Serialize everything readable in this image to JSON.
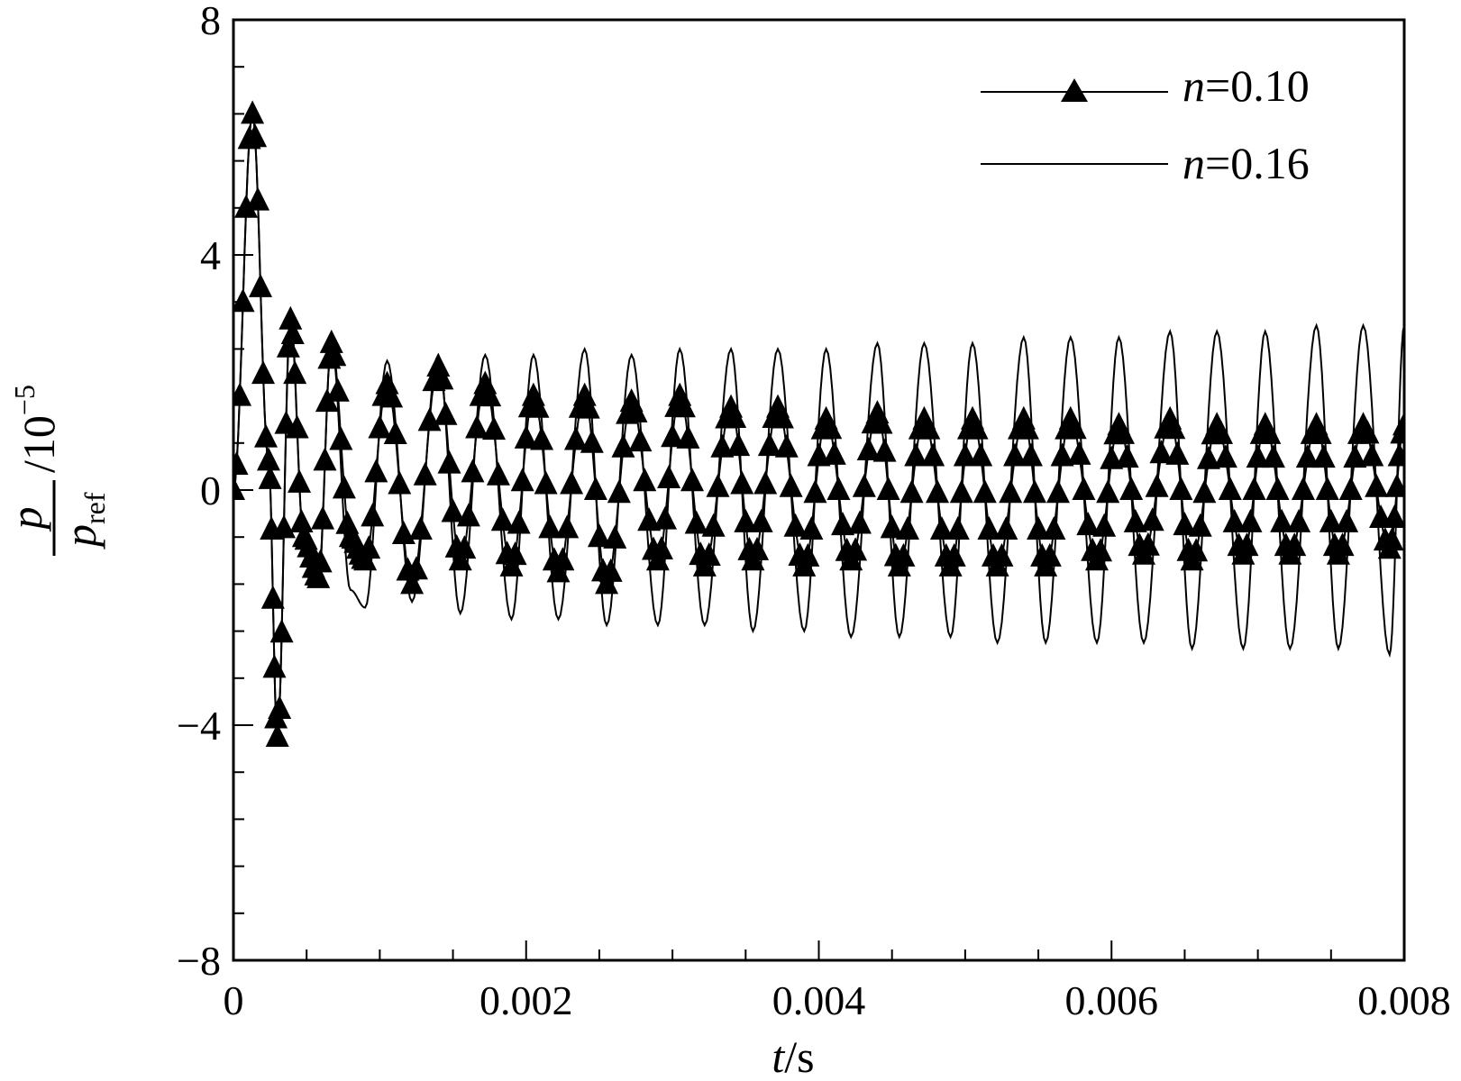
{
  "chart_data": {
    "type": "line",
    "title": "",
    "xlabel": {
      "var": "t",
      "unit": "s"
    },
    "ylabel": {
      "num": "p",
      "den_base": "p",
      "den_sub": "ref",
      "scale_base": "10",
      "scale_exp": "−5"
    },
    "xlim": [
      0,
      0.008
    ],
    "ylim": [
      -8,
      8
    ],
    "x_ticks": [
      {
        "value": 0,
        "label": "0"
      },
      {
        "value": 0.002,
        "label": "0.002"
      },
      {
        "value": 0.004,
        "label": "0.004"
      },
      {
        "value": 0.006,
        "label": "0.006"
      },
      {
        "value": 0.008,
        "label": "0.008"
      }
    ],
    "y_ticks": [
      {
        "value": -8,
        "label": "−8"
      },
      {
        "value": -4,
        "label": "−4"
      },
      {
        "value": 0,
        "label": "0"
      },
      {
        "value": 4,
        "label": "4"
      },
      {
        "value": 8,
        "label": "8"
      }
    ],
    "x_minor_step": 0.0005,
    "y_minor_step": 0.8,
    "grid": false,
    "legend_position": "top-right",
    "series": [
      {
        "name_var": "n",
        "name_value": "=0.10",
        "marker": "triangle",
        "line_color": "#000000",
        "x": [
          0,
          0.00013,
          0.00024,
          0.0003,
          0.00039,
          0.00048,
          0.00058,
          0.00067,
          0.0008,
          0.0009,
          0.00105,
          0.00122,
          0.0014,
          0.00155,
          0.00172,
          0.0019,
          0.00205,
          0.00222,
          0.0024,
          0.00255,
          0.00272,
          0.0029,
          0.00305,
          0.00322,
          0.0034,
          0.00355,
          0.00372,
          0.0039,
          0.00405,
          0.00422,
          0.0044,
          0.00455,
          0.00472,
          0.0049,
          0.00505,
          0.00522,
          0.0054,
          0.00555,
          0.00572,
          0.0059,
          0.00605,
          0.00622,
          0.0064,
          0.00655,
          0.00672,
          0.0069,
          0.00705,
          0.00722,
          0.0074,
          0.00755,
          0.00772,
          0.0079,
          0.008
        ],
        "y": [
          0,
          6.4,
          0.5,
          -4.2,
          2.9,
          -0.8,
          -1.5,
          2.5,
          -0.8,
          -1.2,
          1.8,
          -1.6,
          2.1,
          -1.2,
          1.8,
          -1.3,
          1.6,
          -1.4,
          1.6,
          -1.6,
          1.5,
          -1.2,
          1.6,
          -1.3,
          1.4,
          -1.2,
          1.4,
          -1.3,
          1.2,
          -1.2,
          1.3,
          -1.3,
          1.2,
          -1.3,
          1.2,
          -1.3,
          1.2,
          -1.3,
          1.2,
          -1.2,
          1.1,
          -1.1,
          1.2,
          -1.2,
          1.1,
          -1.1,
          1.1,
          -1.1,
          1.1,
          -1.1,
          1.1,
          -1.0,
          1.1
        ]
      },
      {
        "name_var": "n",
        "name_value": "=0.16",
        "marker": "none",
        "line_color": "#000000",
        "x": [
          0,
          0.00013,
          0.00024,
          0.0003,
          0.00039,
          0.00048,
          0.00058,
          0.00067,
          0.0008,
          0.0009,
          0.00105,
          0.00122,
          0.0014,
          0.00155,
          0.00172,
          0.0019,
          0.00205,
          0.00222,
          0.0024,
          0.00255,
          0.00272,
          0.0029,
          0.00305,
          0.00322,
          0.0034,
          0.00355,
          0.00372,
          0.0039,
          0.00405,
          0.00422,
          0.0044,
          0.00455,
          0.00472,
          0.0049,
          0.00505,
          0.00522,
          0.0054,
          0.00555,
          0.00572,
          0.0059,
          0.00605,
          0.00622,
          0.0064,
          0.00655,
          0.00672,
          0.0069,
          0.00705,
          0.00722,
          0.0074,
          0.00755,
          0.00772,
          0.0079,
          0.008
        ],
        "y": [
          0,
          6.4,
          0.5,
          -4.2,
          3.0,
          -0.8,
          -1.6,
          2.5,
          -1.7,
          -2.0,
          2.2,
          -1.9,
          2.3,
          -2.1,
          2.3,
          -2.2,
          2.3,
          -2.2,
          2.4,
          -2.3,
          2.3,
          -2.3,
          2.4,
          -2.3,
          2.4,
          -2.4,
          2.4,
          -2.4,
          2.4,
          -2.5,
          2.5,
          -2.5,
          2.5,
          -2.5,
          2.5,
          -2.6,
          2.6,
          -2.6,
          2.6,
          -2.6,
          2.6,
          -2.6,
          2.7,
          -2.7,
          2.7,
          -2.7,
          2.7,
          -2.7,
          2.8,
          -2.7,
          2.8,
          -2.8,
          2.8
        ]
      }
    ]
  }
}
